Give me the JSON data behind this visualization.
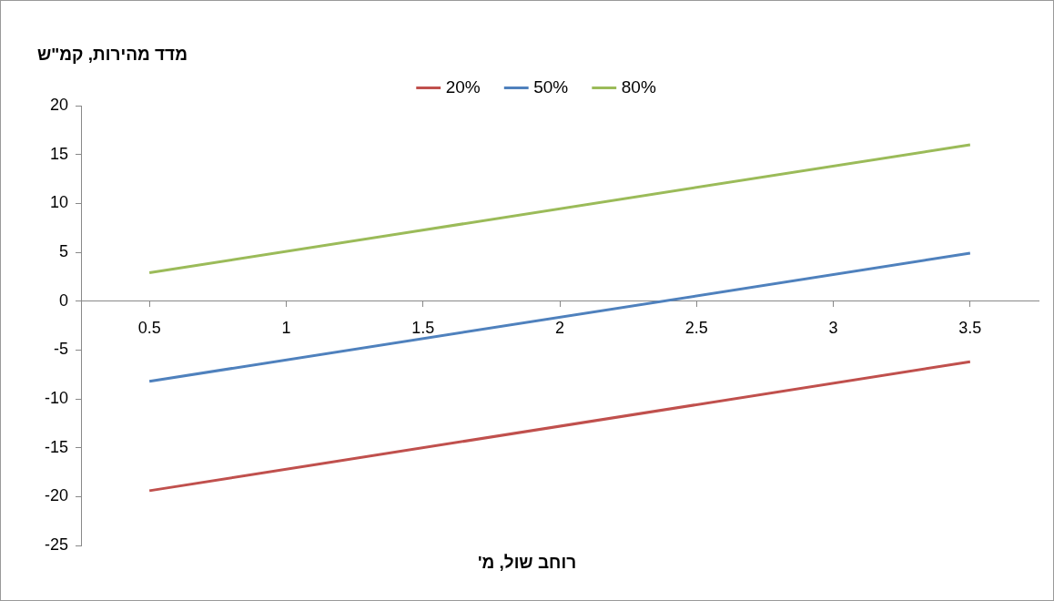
{
  "chart_data": {
    "type": "line",
    "xlabel": "רוחב שול, מ'",
    "ylabel": "מדד מהירות, קמ\"ש",
    "x": [
      0.5,
      3.5
    ],
    "series": [
      {
        "name": "20%",
        "color": "#c0504d",
        "values": [
          -19.4,
          -6.2
        ]
      },
      {
        "name": "50%",
        "color": "#4f81bd",
        "values": [
          -8.2,
          4.9
        ]
      },
      {
        "name": "80%",
        "color": "#9bbb59",
        "values": [
          2.9,
          16
        ]
      }
    ],
    "xlim": [
      0.25,
      3.75
    ],
    "xticks": [
      0.5,
      1,
      1.5,
      2,
      2.5,
      3,
      3.5
    ],
    "ylim": [
      -25,
      20
    ],
    "yticks": [
      -25,
      -20,
      -15,
      -10,
      -5,
      0,
      5,
      10,
      15,
      20
    ],
    "grid": false,
    "legend": "top",
    "marker": "none",
    "line_style": "solid"
  }
}
